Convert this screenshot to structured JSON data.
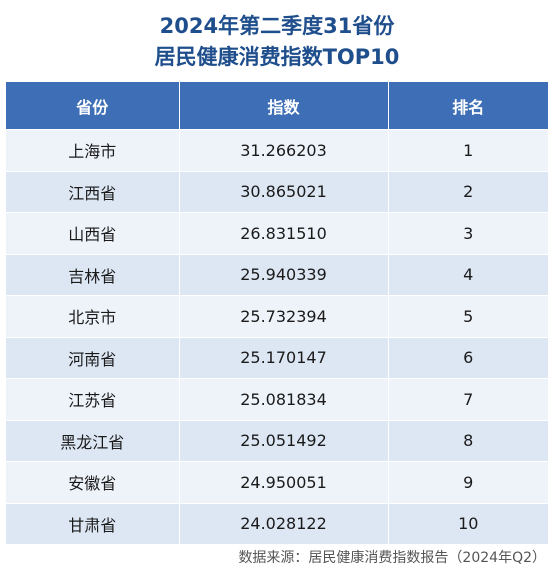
{
  "title": {
    "line1": "2024年第二季度31省份",
    "line2": "居民健康消费指数TOP10"
  },
  "table": {
    "headers": [
      "省份",
      "指数",
      "排名"
    ],
    "rows": [
      {
        "province": "上海市",
        "index": "31.266203",
        "rank": "1"
      },
      {
        "province": "江西省",
        "index": "30.865021",
        "rank": "2"
      },
      {
        "province": "山西省",
        "index": "26.831510",
        "rank": "3"
      },
      {
        "province": "吉林省",
        "index": "25.940339",
        "rank": "4"
      },
      {
        "province": "北京市",
        "index": "25.732394",
        "rank": "5"
      },
      {
        "province": "河南省",
        "index": "25.170147",
        "rank": "6"
      },
      {
        "province": "江苏省",
        "index": "25.081834",
        "rank": "7"
      },
      {
        "province": "黑龙江省",
        "index": "25.051492",
        "rank": "8"
      },
      {
        "province": "安徽省",
        "index": "24.950051",
        "rank": "9"
      },
      {
        "province": "甘肃省",
        "index": "24.028122",
        "rank": "10"
      }
    ]
  },
  "footer": {
    "source": "数据来源：居民健康消费指数报告（2024年Q2）"
  },
  "colors": {
    "title": "#1f4e8c",
    "header_bg": "#3e6fb6",
    "row_light": "#eef3fa",
    "row_dark": "#dde7f4"
  }
}
